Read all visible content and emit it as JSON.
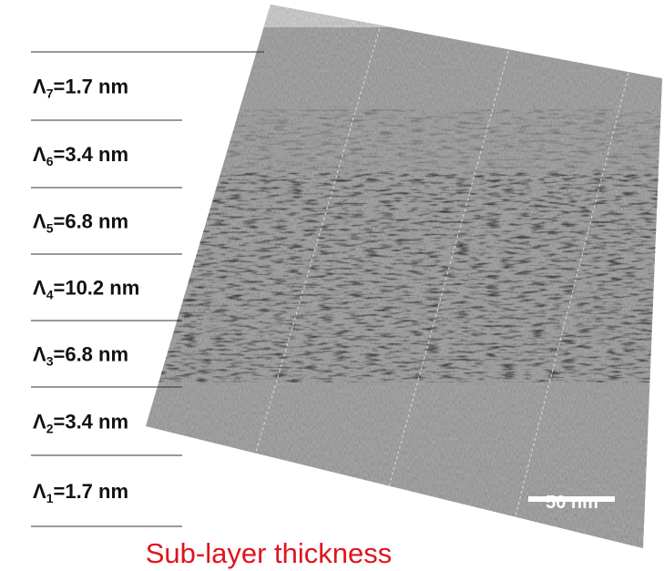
{
  "layers": [
    {
      "symbol": "Λ",
      "index": "7",
      "text": "=1.7 nm"
    },
    {
      "symbol": "Λ",
      "index": "6",
      "text": "=3.4 nm"
    },
    {
      "symbol": "Λ",
      "index": "5",
      "text": "=6.8 nm"
    },
    {
      "symbol": "Λ",
      "index": "4",
      "text": "=10.2 nm"
    },
    {
      "symbol": "Λ",
      "index": "3",
      "text": "=6.8 nm"
    },
    {
      "symbol": "Λ",
      "index": "2",
      "text": "=3.4 nm"
    },
    {
      "symbol": "Λ",
      "index": "1",
      "text": "=1.7 nm"
    }
  ],
  "scale_bar": "50 nm",
  "caption": "Sub-layer thickness"
}
